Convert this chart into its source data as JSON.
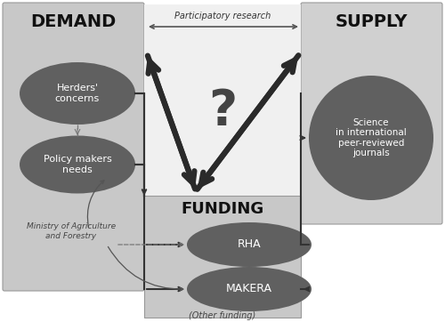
{
  "title_demand": "DEMAND",
  "title_supply": "SUPPLY",
  "title_funding": "FUNDING",
  "participatory_text": "Participatory research",
  "question_mark": "?",
  "herders_text": "Herders'\nconcerns",
  "policy_text": "Policy makers\nneeds",
  "science_text": "Science\nin international\npeer-reviewed\njournals",
  "rha_text": "RHA",
  "makera_text": "MAKERA",
  "other_funding_text": "(Other funding)",
  "ministry_text": "Ministry of Agriculture\nand Forestry",
  "dark_ellipse_color": "#606060",
  "demand_bg": "#c8c8c8",
  "supply_bg": "#d0d0d0",
  "funding_upper_bg": "#e8e8e8",
  "funding_lower_bg": "#c0c0c0",
  "white_text": "#ffffff",
  "dark_text": "#111111",
  "arrow_color": "#333333",
  "thin_arrow_color": "#555555",
  "dashed_color": "#888888"
}
